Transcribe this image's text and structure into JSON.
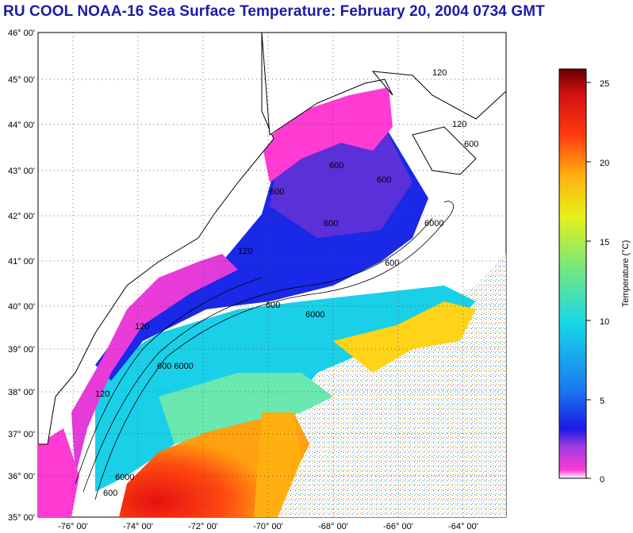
{
  "title": "RU COOL  NOAA-16  Sea Surface Temperature:  February 20, 2004 0734 GMT",
  "map": {
    "lat_labels": [
      "46° 00'",
      "45° 00'",
      "44° 00'",
      "43° 00'",
      "42° 00'",
      "41° 00'",
      "40° 00'",
      "39° 00'",
      "38° 00'",
      "37° 00'",
      "36° 00'",
      "35° 00'"
    ],
    "lon_labels": [
      "-76° 00'",
      "-74° 00'",
      "-72° 00'",
      "-70° 00'",
      "-68° 00'",
      "-66° 00'",
      "-64° 00'"
    ],
    "lat_range": [
      35,
      46
    ],
    "lon_range": [
      -77,
      -63
    ],
    "contour_labels": [
      "120",
      "120",
      "600",
      "600",
      "600",
      "600",
      "6000",
      "600",
      "600",
      "6000",
      "600 6000",
      "120",
      "6000",
      "600",
      "120",
      "120",
      "600"
    ]
  },
  "colorbar": {
    "title": "Temperature (°C)",
    "ticks": [
      "25",
      "20",
      "15",
      "10",
      "5",
      "0"
    ],
    "range": [
      0,
      26
    ],
    "colors": [
      "#ffffff",
      "#ff3bd4",
      "#9a3be0",
      "#1a1ae8",
      "#1a7cf0",
      "#18d8e8",
      "#7ae87a",
      "#e8f018",
      "#ffb010",
      "#ff3a10",
      "#d01010",
      "#6a0000"
    ]
  }
}
